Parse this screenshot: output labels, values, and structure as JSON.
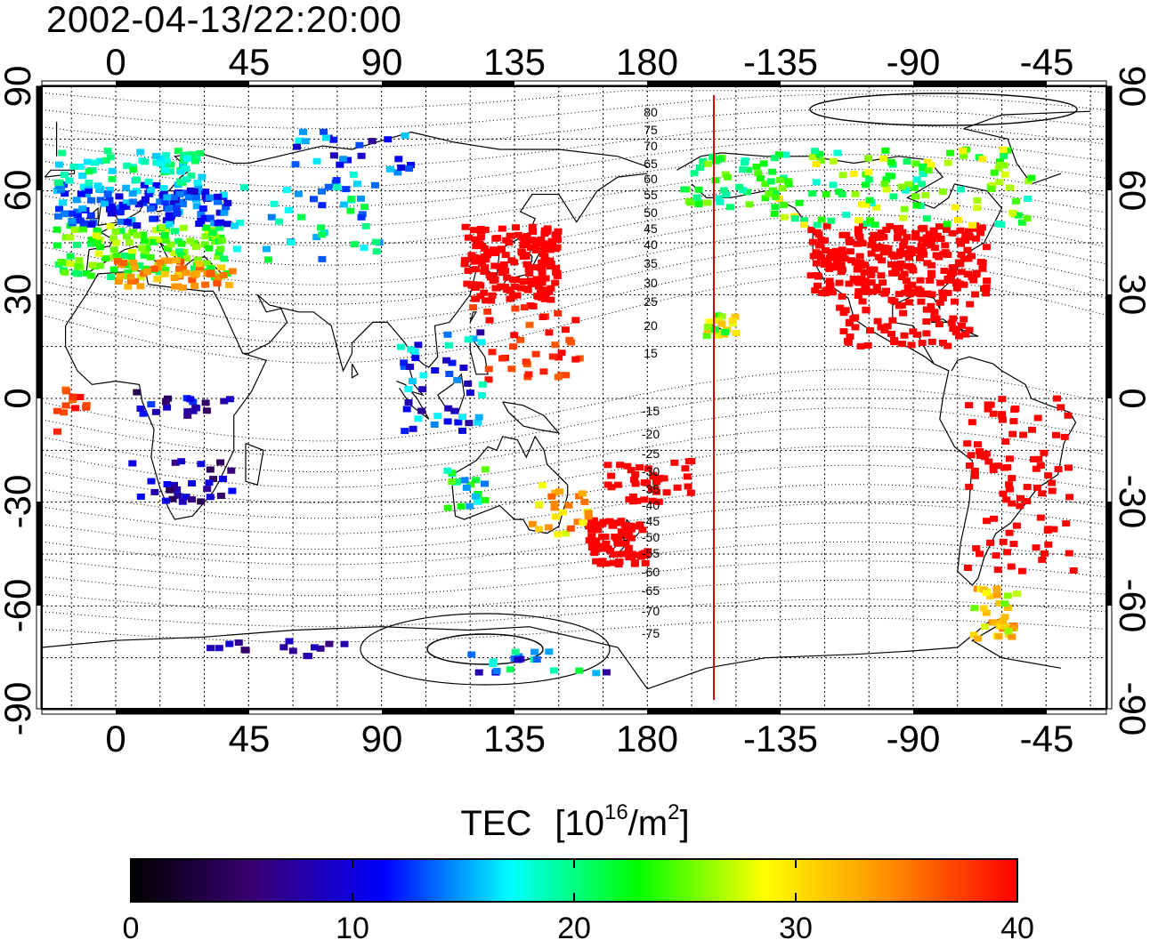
{
  "title": "2002-04-13/22:20:00",
  "map": {
    "lon_ticks": [
      "0",
      "45",
      "90",
      "135",
      "180",
      "-135",
      "-90",
      "-45"
    ],
    "lat_ticks": [
      "90",
      "60",
      "30",
      "0",
      "-30",
      "-60",
      "-90"
    ],
    "mlat_labels_north": [
      "80",
      "75",
      "70",
      "65",
      "60",
      "55",
      "50",
      "45",
      "40",
      "35",
      "30",
      "25",
      "20",
      "15"
    ],
    "mlat_labels_south": [
      "-15",
      "-20",
      "-25",
      "-30",
      "-35",
      "-40",
      "-45",
      "-50",
      "-55",
      "-60",
      "-65",
      "-70",
      "-75"
    ],
    "terminator_longitude": -157.5
  },
  "colorbar": {
    "label_prefix": "TEC",
    "label_unit_open": "[10",
    "label_unit_exp": "16",
    "label_unit_mid": "/m",
    "label_unit_exp2": "2",
    "label_unit_close": "]",
    "ticks": [
      "0",
      "10",
      "20",
      "30",
      "40"
    ],
    "min": 0,
    "max": 40,
    "colors": [
      "#000000",
      "#3a0078",
      "#0000ff",
      "#00ffff",
      "#00ff00",
      "#ffff00",
      "#ff8c00",
      "#ff0000"
    ]
  }
}
